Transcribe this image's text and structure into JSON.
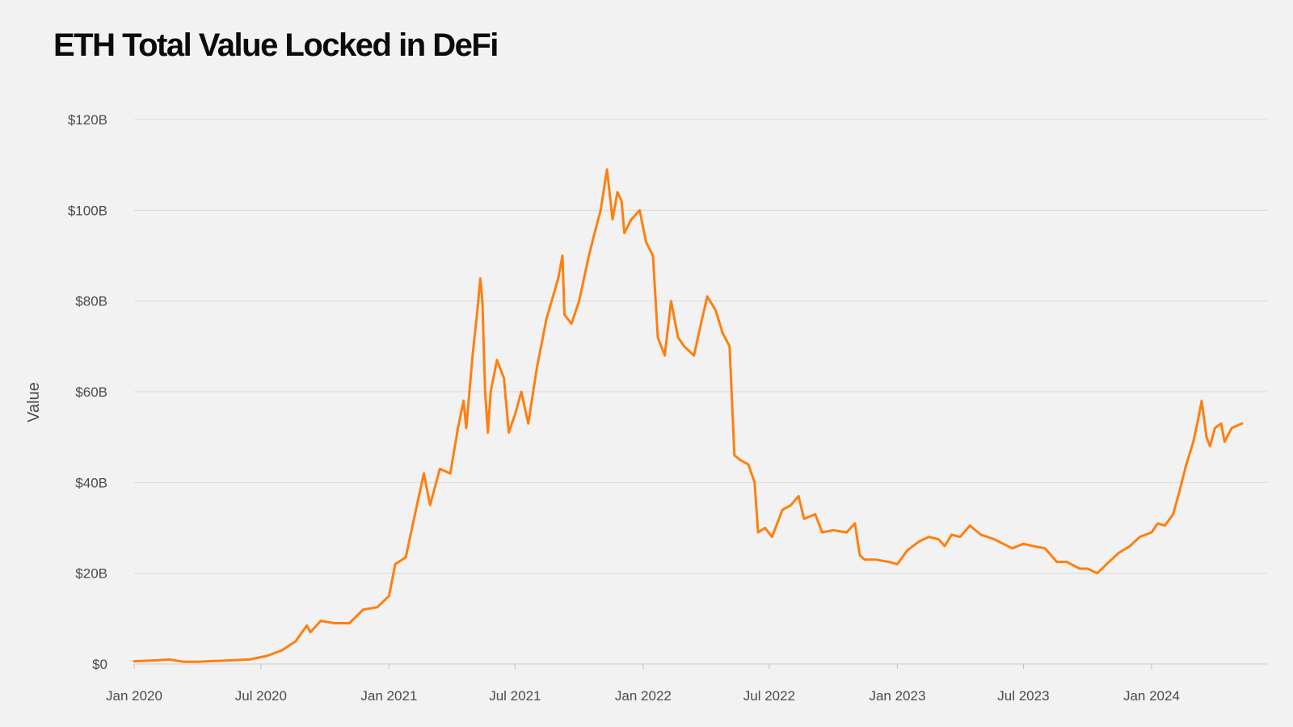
{
  "chart_data": {
    "type": "line",
    "title": "ETH Total Value Locked in DeFi",
    "xlabel": "",
    "ylabel": "Value",
    "x_ticks": [
      "Jan 2020",
      "Jul 2020",
      "Jan 2021",
      "Jul 2021",
      "Jan 2022",
      "Jul 2022",
      "Jan 2023",
      "Jul 2023",
      "Jan 2024"
    ],
    "y_ticks": [
      "$0",
      "$20B",
      "$40B",
      "$60B",
      "$80B",
      "$100B",
      "$120B"
    ],
    "ylim": [
      0,
      120
    ],
    "y_unit": "billion USD",
    "xlim": [
      "2020-01-01",
      "2024-06-15"
    ],
    "grid": true,
    "legend": "none",
    "color": "#ff7f0e",
    "series": [
      {
        "name": "ETH TVL",
        "points": [
          [
            "2020-01-01",
            0.6
          ],
          [
            "2020-02-01",
            0.8
          ],
          [
            "2020-02-20",
            1.0
          ],
          [
            "2020-03-12",
            0.5
          ],
          [
            "2020-04-01",
            0.5
          ],
          [
            "2020-05-01",
            0.7
          ],
          [
            "2020-06-15",
            1.0
          ],
          [
            "2020-07-10",
            1.8
          ],
          [
            "2020-07-31",
            3.0
          ],
          [
            "2020-08-20",
            5.0
          ],
          [
            "2020-09-05",
            8.5
          ],
          [
            "2020-09-10",
            7.0
          ],
          [
            "2020-09-25",
            9.5
          ],
          [
            "2020-10-15",
            9.0
          ],
          [
            "2020-11-05",
            9.0
          ],
          [
            "2020-11-25",
            12.0
          ],
          [
            "2020-12-15",
            12.5
          ],
          [
            "2021-01-01",
            15.0
          ],
          [
            "2021-01-10",
            22.0
          ],
          [
            "2021-01-25",
            23.5
          ],
          [
            "2021-02-10",
            35.0
          ],
          [
            "2021-02-20",
            42.0
          ],
          [
            "2021-03-01",
            35.0
          ],
          [
            "2021-03-15",
            43.0
          ],
          [
            "2021-03-30",
            42.0
          ],
          [
            "2021-04-10",
            52.0
          ],
          [
            "2021-04-18",
            58.0
          ],
          [
            "2021-04-22",
            52.0
          ],
          [
            "2021-05-01",
            68.0
          ],
          [
            "2021-05-08",
            78.0
          ],
          [
            "2021-05-12",
            85.0
          ],
          [
            "2021-05-15",
            80.0
          ],
          [
            "2021-05-19",
            60.0
          ],
          [
            "2021-05-23",
            51.0
          ],
          [
            "2021-05-27",
            60.0
          ],
          [
            "2021-06-05",
            67.0
          ],
          [
            "2021-06-15",
            63.0
          ],
          [
            "2021-06-22",
            51.0
          ],
          [
            "2021-07-01",
            55.0
          ],
          [
            "2021-07-10",
            60.0
          ],
          [
            "2021-07-20",
            53.0
          ],
          [
            "2021-08-01",
            65.0
          ],
          [
            "2021-08-15",
            76.0
          ],
          [
            "2021-09-01",
            85.0
          ],
          [
            "2021-09-07",
            90.0
          ],
          [
            "2021-09-10",
            77.0
          ],
          [
            "2021-09-20",
            75.0
          ],
          [
            "2021-10-01",
            80.0
          ],
          [
            "2021-10-15",
            90.0
          ],
          [
            "2021-10-25",
            96.0
          ],
          [
            "2021-11-01",
            100.0
          ],
          [
            "2021-11-10",
            109.0
          ],
          [
            "2021-11-18",
            98.0
          ],
          [
            "2021-11-25",
            104.0
          ],
          [
            "2021-12-01",
            102.0
          ],
          [
            "2021-12-05",
            95.0
          ],
          [
            "2021-12-15",
            98.0
          ],
          [
            "2021-12-27",
            100.0
          ],
          [
            "2022-01-05",
            93.0
          ],
          [
            "2022-01-15",
            90.0
          ],
          [
            "2022-01-22",
            72.0
          ],
          [
            "2022-02-01",
            68.0
          ],
          [
            "2022-02-10",
            80.0
          ],
          [
            "2022-02-20",
            72.0
          ],
          [
            "2022-03-01",
            70.0
          ],
          [
            "2022-03-15",
            68.0
          ],
          [
            "2022-03-25",
            75.0
          ],
          [
            "2022-04-03",
            81.0
          ],
          [
            "2022-04-15",
            78.0
          ],
          [
            "2022-04-25",
            73.0
          ],
          [
            "2022-05-05",
            70.0
          ],
          [
            "2022-05-08",
            60.0
          ],
          [
            "2022-05-12",
            46.0
          ],
          [
            "2022-05-20",
            45.0
          ],
          [
            "2022-06-01",
            44.0
          ],
          [
            "2022-06-10",
            40.0
          ],
          [
            "2022-06-15",
            29.0
          ],
          [
            "2022-06-25",
            30.0
          ],
          [
            "2022-07-05",
            28.0
          ],
          [
            "2022-07-20",
            34.0
          ],
          [
            "2022-08-01",
            35.0
          ],
          [
            "2022-08-12",
            37.0
          ],
          [
            "2022-08-20",
            32.0
          ],
          [
            "2022-09-05",
            33.0
          ],
          [
            "2022-09-15",
            29.0
          ],
          [
            "2022-10-01",
            29.5
          ],
          [
            "2022-10-20",
            29.0
          ],
          [
            "2022-11-01",
            31.0
          ],
          [
            "2022-11-08",
            24.0
          ],
          [
            "2022-11-15",
            23.0
          ],
          [
            "2022-12-01",
            23.0
          ],
          [
            "2022-12-20",
            22.5
          ],
          [
            "2023-01-01",
            22.0
          ],
          [
            "2023-01-15",
            25.0
          ],
          [
            "2023-02-01",
            27.0
          ],
          [
            "2023-02-15",
            28.0
          ],
          [
            "2023-03-01",
            27.5
          ],
          [
            "2023-03-10",
            26.0
          ],
          [
            "2023-03-20",
            28.5
          ],
          [
            "2023-04-01",
            28.0
          ],
          [
            "2023-04-15",
            30.5
          ],
          [
            "2023-05-01",
            28.5
          ],
          [
            "2023-05-20",
            27.5
          ],
          [
            "2023-06-15",
            25.5
          ],
          [
            "2023-07-01",
            26.5
          ],
          [
            "2023-07-15",
            26.0
          ],
          [
            "2023-08-01",
            25.5
          ],
          [
            "2023-08-18",
            22.5
          ],
          [
            "2023-09-01",
            22.5
          ],
          [
            "2023-09-20",
            21.0
          ],
          [
            "2023-10-01",
            21.0
          ],
          [
            "2023-10-15",
            20.0
          ],
          [
            "2023-11-01",
            22.5
          ],
          [
            "2023-11-15",
            24.5
          ],
          [
            "2023-12-01",
            26.0
          ],
          [
            "2023-12-15",
            28.0
          ],
          [
            "2024-01-01",
            29.0
          ],
          [
            "2024-01-10",
            31.0
          ],
          [
            "2024-01-20",
            30.5
          ],
          [
            "2024-02-01",
            33.0
          ],
          [
            "2024-02-10",
            38.0
          ],
          [
            "2024-02-20",
            44.0
          ],
          [
            "2024-03-01",
            49.0
          ],
          [
            "2024-03-08",
            54.0
          ],
          [
            "2024-03-13",
            58.0
          ],
          [
            "2024-03-20",
            50.0
          ],
          [
            "2024-03-25",
            48.0
          ],
          [
            "2024-04-01",
            52.0
          ],
          [
            "2024-04-10",
            53.0
          ],
          [
            "2024-04-15",
            49.0
          ],
          [
            "2024-04-25",
            52.0
          ],
          [
            "2024-05-10",
            53.0
          ]
        ]
      }
    ]
  }
}
